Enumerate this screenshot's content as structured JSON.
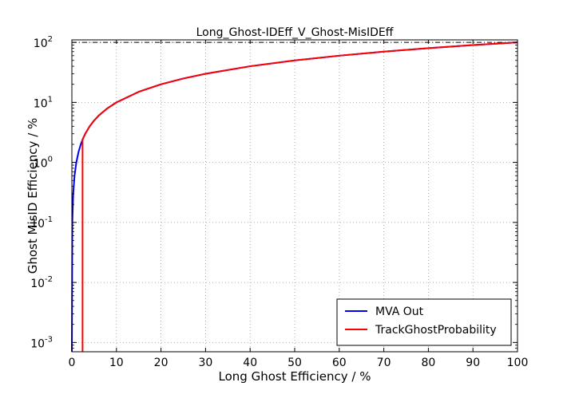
{
  "chart_data": {
    "type": "line",
    "title": "Long_Ghost-IDEff_V_Ghost-MisIDEff",
    "xlabel": "Long Ghost Efficiency / %",
    "ylabel": "Ghost MisID Efficiency / %",
    "xlim": [
      0,
      100
    ],
    "ylim": [
      0.0007,
      110
    ],
    "yscale": "log",
    "grid": true,
    "legend_position": "bottom-right",
    "x_ticks": [
      "0",
      "10",
      "20",
      "30",
      "40",
      "50",
      "60",
      "70",
      "80",
      "90",
      "100"
    ],
    "y_ticks": [
      {
        "base": "10",
        "exp": "-3",
        "value": 0.001
      },
      {
        "base": "10",
        "exp": "-2",
        "value": 0.01
      },
      {
        "base": "10",
        "exp": "-1",
        "value": 0.1
      },
      {
        "base": "10",
        "exp": "0",
        "value": 1
      },
      {
        "base": "10",
        "exp": "1",
        "value": 10
      },
      {
        "base": "10",
        "exp": "2",
        "value": 100
      }
    ],
    "series": [
      {
        "name": "MVA Out",
        "color": "#0000ff",
        "x": [
          0.0,
          0.1,
          0.3,
          0.6,
          1.0,
          1.5,
          2.0,
          2.5,
          3,
          4,
          5,
          6,
          8,
          10,
          15,
          20,
          25,
          30,
          40,
          50,
          60,
          70,
          80,
          90,
          100
        ],
        "y": [
          0.0007,
          0.1,
          0.3,
          0.6,
          1.0,
          1.5,
          2.0,
          2.5,
          3,
          4,
          5,
          6,
          8,
          10,
          15,
          20,
          25,
          30,
          40,
          50,
          60,
          70,
          80,
          90,
          100
        ]
      },
      {
        "name": "TrackGhostProbability",
        "color": "#ff0000",
        "x": [
          2.4,
          2.4,
          3,
          4,
          5,
          6,
          8,
          10,
          15,
          20,
          25,
          30,
          40,
          50,
          60,
          70,
          80,
          90,
          100
        ],
        "y": [
          0.0007,
          2.4,
          3,
          4,
          5,
          6,
          8,
          10,
          15,
          20,
          25,
          30,
          40,
          50,
          60,
          70,
          80,
          90,
          100
        ]
      }
    ],
    "reference_line": {
      "y": 100,
      "style": "dash-dot",
      "color": "#000000"
    }
  }
}
